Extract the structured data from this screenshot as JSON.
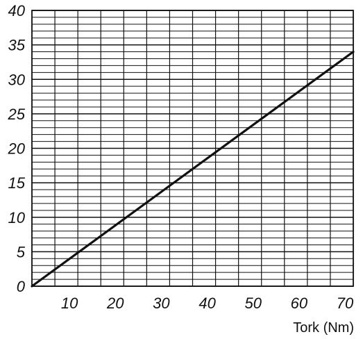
{
  "chart_data": {
    "type": "line",
    "title": "",
    "xlabel": "Tork (Nm)",
    "ylabel": "",
    "xlim": [
      0,
      70
    ],
    "ylim": [
      0,
      40
    ],
    "x_ticks": [
      10,
      20,
      30,
      40,
      50,
      60,
      70
    ],
    "y_ticks": [
      0,
      5,
      10,
      15,
      20,
      25,
      30,
      35,
      40
    ],
    "x_grid_step": 5,
    "y_grid_step": 1,
    "grid": true,
    "series": [
      {
        "x": [
          0,
          70
        ],
        "y": [
          0,
          34
        ],
        "color": "#111111"
      }
    ]
  }
}
